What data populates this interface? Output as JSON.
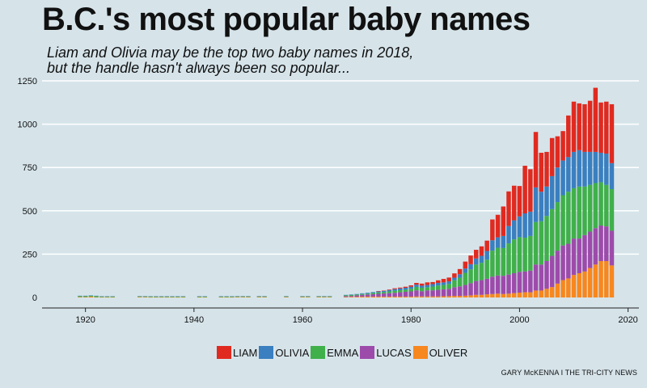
{
  "title": "B.C.'s most popular baby names",
  "subtitle_line1": "Liam and Olivia may be the top two baby names in 2018,",
  "subtitle_line2": "but the handle hasn't always been so popular...",
  "credit": "GARY McKENNA I THE TRI-CITY NEWS",
  "chart_data": {
    "type": "bar",
    "stacked": true,
    "xlim": [
      1912,
      2022
    ],
    "ylim": [
      0,
      1250
    ],
    "x_ticks": [
      1920,
      1940,
      1960,
      1980,
      2000,
      2020
    ],
    "y_ticks": [
      0,
      250,
      500,
      750,
      1000,
      1250
    ],
    "grid": "horizontal",
    "legend_position": "bottom",
    "series_order": [
      "OLIVER",
      "LUCAS",
      "EMMA",
      "OLIVIA",
      "LIAM"
    ],
    "colors": {
      "LIAM": "#e02a20",
      "OLIVIA": "#3a7fc0",
      "EMMA": "#40b04a",
      "LUCAS": "#9d4bab",
      "OLIVER": "#f7871f"
    },
    "x": [
      1919,
      1920,
      1921,
      1922,
      1923,
      1924,
      1925,
      1930,
      1931,
      1932,
      1933,
      1934,
      1935,
      1936,
      1937,
      1938,
      1941,
      1942,
      1945,
      1946,
      1947,
      1948,
      1949,
      1950,
      1952,
      1953,
      1957,
      1960,
      1961,
      1963,
      1964,
      1965,
      1968,
      1969,
      1970,
      1971,
      1972,
      1973,
      1974,
      1975,
      1976,
      1977,
      1978,
      1979,
      1980,
      1981,
      1982,
      1983,
      1984,
      1985,
      1986,
      1987,
      1988,
      1989,
      1990,
      1991,
      1992,
      1993,
      1994,
      1995,
      1996,
      1997,
      1998,
      1999,
      2000,
      2001,
      2002,
      2003,
      2004,
      2005,
      2006,
      2007,
      2008,
      2009,
      2010,
      2011,
      2012,
      2013,
      2014,
      2015,
      2016,
      2017
    ],
    "series": [
      {
        "name": "OLIVER",
        "values": [
          3,
          3,
          5,
          2,
          2,
          2,
          2,
          3,
          3,
          2,
          2,
          2,
          2,
          2,
          2,
          2,
          2,
          2,
          2,
          2,
          2,
          3,
          3,
          3,
          3,
          3,
          3,
          3,
          3,
          3,
          3,
          3,
          3,
          4,
          4,
          5,
          5,
          5,
          5,
          5,
          5,
          5,
          5,
          5,
          5,
          6,
          6,
          6,
          6,
          6,
          7,
          8,
          9,
          9,
          10,
          12,
          15,
          15,
          18,
          20,
          22,
          20,
          22,
          25,
          28,
          30,
          30,
          40,
          40,
          50,
          60,
          80,
          100,
          110,
          130,
          140,
          150,
          170,
          190,
          210,
          210,
          185
        ]
      },
      {
        "name": "LUCAS",
        "values": [
          0,
          0,
          0,
          0,
          0,
          0,
          0,
          0,
          0,
          0,
          0,
          0,
          0,
          0,
          0,
          0,
          0,
          0,
          0,
          0,
          0,
          0,
          0,
          0,
          0,
          0,
          0,
          0,
          0,
          0,
          0,
          0,
          5,
          5,
          8,
          10,
          12,
          14,
          16,
          18,
          20,
          22,
          25,
          28,
          30,
          35,
          30,
          35,
          35,
          38,
          40,
          42,
          50,
          55,
          62,
          70,
          80,
          85,
          90,
          100,
          105,
          105,
          110,
          115,
          120,
          120,
          125,
          150,
          150,
          160,
          180,
          190,
          200,
          200,
          210,
          200,
          210,
          210,
          210,
          205,
          200,
          200
        ]
      },
      {
        "name": "EMMA",
        "values": [
          5,
          5,
          5,
          6,
          3,
          3,
          3,
          3,
          3,
          3,
          3,
          3,
          3,
          3,
          3,
          3,
          3,
          3,
          3,
          3,
          3,
          3,
          3,
          3,
          3,
          3,
          3,
          3,
          3,
          3,
          3,
          3,
          5,
          5,
          5,
          5,
          5,
          7,
          8,
          8,
          10,
          12,
          12,
          12,
          15,
          20,
          20,
          18,
          22,
          25,
          25,
          28,
          40,
          50,
          70,
          80,
          95,
          100,
          110,
          150,
          160,
          160,
          180,
          195,
          200,
          195,
          200,
          245,
          250,
          260,
          270,
          280,
          290,
          300,
          290,
          300,
          280,
          270,
          260,
          250,
          240,
          240
        ]
      },
      {
        "name": "OLIVIA",
        "values": [
          2,
          2,
          2,
          2,
          2,
          2,
          2,
          2,
          2,
          2,
          2,
          2,
          2,
          2,
          2,
          2,
          2,
          2,
          2,
          2,
          2,
          2,
          2,
          2,
          2,
          2,
          2,
          2,
          2,
          2,
          2,
          2,
          2,
          3,
          3,
          4,
          5,
          5,
          6,
          7,
          8,
          9,
          10,
          11,
          12,
          13,
          12,
          13,
          14,
          15,
          15,
          15,
          15,
          20,
          25,
          30,
          35,
          40,
          50,
          60,
          60,
          70,
          100,
          110,
          120,
          140,
          140,
          200,
          170,
          170,
          190,
          200,
          200,
          200,
          210,
          210,
          200,
          190,
          180,
          170,
          180,
          150
        ]
      },
      {
        "name": "LIAM",
        "values": [
          0,
          0,
          0,
          0,
          0,
          0,
          0,
          0,
          0,
          0,
          0,
          0,
          0,
          0,
          0,
          0,
          0,
          0,
          0,
          0,
          0,
          0,
          0,
          0,
          0,
          0,
          0,
          0,
          0,
          0,
          0,
          0,
          0,
          0,
          0,
          0,
          0,
          0,
          2,
          2,
          3,
          5,
          5,
          6,
          8,
          10,
          12,
          15,
          12,
          15,
          20,
          22,
          25,
          30,
          40,
          50,
          50,
          55,
          60,
          120,
          130,
          170,
          200,
          200,
          175,
          275,
          245,
          320,
          225,
          200,
          220,
          180,
          170,
          240,
          290,
          270,
          275,
          295,
          370,
          290,
          300,
          340
        ]
      }
    ],
    "legend": [
      "LIAM",
      "OLIVIA",
      "EMMA",
      "LUCAS",
      "OLIVER"
    ]
  }
}
